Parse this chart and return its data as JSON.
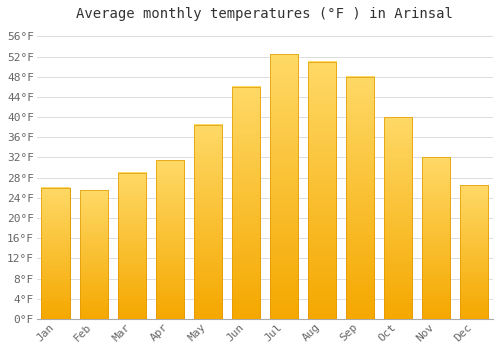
{
  "title": "Average monthly temperatures (°F ) in Arinsal",
  "months": [
    "Jan",
    "Feb",
    "Mar",
    "Apr",
    "May",
    "Jun",
    "Jul",
    "Aug",
    "Sep",
    "Oct",
    "Nov",
    "Dec"
  ],
  "values": [
    26.0,
    25.5,
    29.0,
    31.5,
    38.5,
    46.0,
    52.5,
    51.0,
    48.0,
    40.0,
    32.0,
    26.5
  ],
  "bar_color_bottom": "#F5A800",
  "bar_color_top": "#FFD966",
  "bar_edge_color": "#E09800",
  "ylim": [
    0,
    58
  ],
  "yticks": [
    0,
    4,
    8,
    12,
    16,
    20,
    24,
    28,
    32,
    36,
    40,
    44,
    48,
    52,
    56
  ],
  "ytick_labels": [
    "0°F",
    "4°F",
    "8°F",
    "12°F",
    "16°F",
    "20°F",
    "24°F",
    "28°F",
    "32°F",
    "36°F",
    "40°F",
    "44°F",
    "48°F",
    "52°F",
    "56°F"
  ],
  "grid_color": "#dddddd",
  "bg_color": "#ffffff",
  "title_fontsize": 10,
  "tick_fontsize": 8,
  "font_family": "monospace"
}
